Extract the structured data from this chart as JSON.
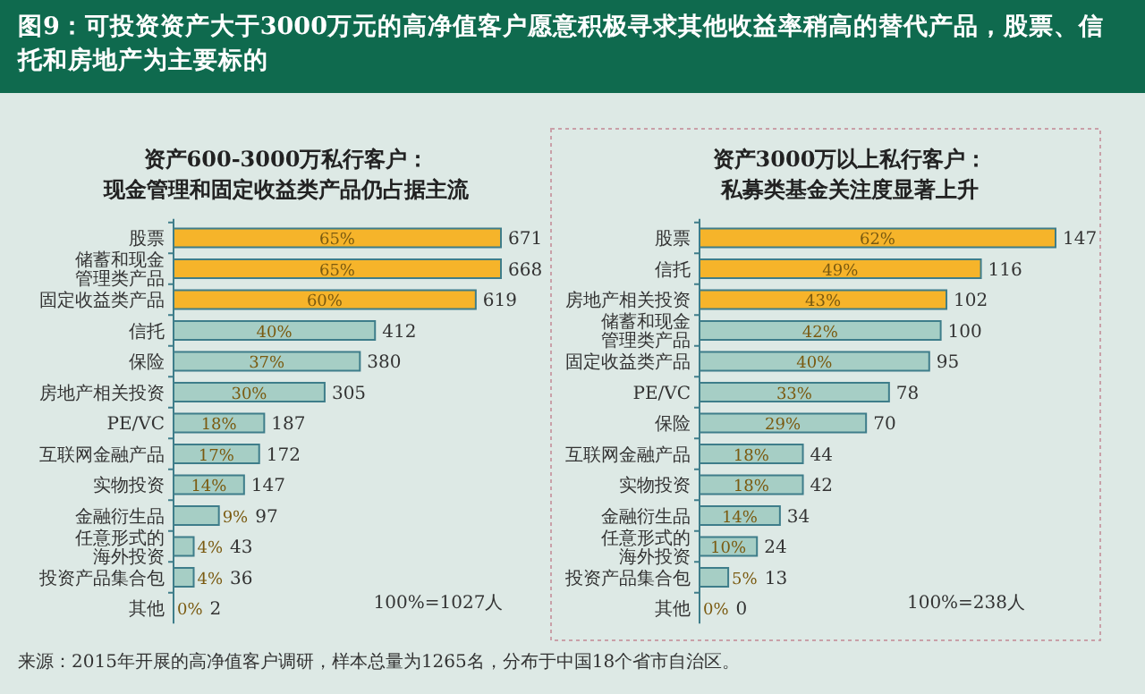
{
  "chart_data": [
    {
      "type": "bar",
      "orientation": "horizontal",
      "title": "资产600-3000万私行客户：",
      "subtitle": "现金管理和固定收益类产品仍占据主流",
      "categories": [
        "股票",
        "储蓄和现金管理类产品",
        "固定收益类产品",
        "信托",
        "保险",
        "房地产相关投资",
        "PE/VC",
        "互联网金融产品",
        "实物投资",
        "金融衍生品",
        "任意形式的海外投资",
        "投资产品集合包",
        "其他"
      ],
      "values": [
        65,
        65,
        60,
        40,
        37,
        30,
        18,
        17,
        14,
        9,
        4,
        4,
        0
      ],
      "value_labels": [
        "65%",
        "65%",
        "60%",
        "40%",
        "37%",
        "30%",
        "18%",
        "17%",
        "14%",
        "9%",
        "4%",
        "4%",
        "0%"
      ],
      "colors": [
        "#f6b42a",
        "#f6b42a",
        "#f6b42a",
        "#a6cec5",
        "#a6cec5",
        "#a6cec5",
        "#a6cec5",
        "#a6cec5",
        "#a6cec5",
        "#a6cec5",
        "#a6cec5",
        "#a6cec5",
        "#a6cec5"
      ],
      "annotations": [
        "图9：可投资资产大于3000万元的高净值客户愿意积极寻求其他收益率稍高的替代产品，股票、信托和房地产为主要标的",
        "100%=1027人",
        "来源：2015年开展的高净值客户调研，样本总量为1265名，分布于中国18个省市自治区。",
        {
          "text": "671",
          "x": 65,
          "y": "股票"
        },
        {
          "text": "668",
          "x": 65,
          "y": "储蓄和现金管理类产品"
        },
        {
          "text": "619",
          "x": 60,
          "y": "固定收益类产品"
        },
        {
          "text": "412",
          "x": 40,
          "y": "信托"
        },
        {
          "text": "380",
          "x": 37,
          "y": "保险"
        },
        {
          "text": "305",
          "x": 30,
          "y": "房地产相关投资"
        },
        {
          "text": "187",
          "x": 18,
          "y": "PE/VC"
        },
        {
          "text": "172",
          "x": 17,
          "y": "互联网金融产品"
        },
        {
          "text": "147",
          "x": 14,
          "y": "实物投资"
        },
        {
          "text": "97",
          "x": 9,
          "y": "金融衍生品"
        },
        {
          "text": "43",
          "x": 4,
          "y": "任意形式的海外投资"
        },
        {
          "text": "36",
          "x": 4,
          "y": "投资产品集合包"
        },
        {
          "text": "2",
          "x": 0,
          "y": "其他"
        }
      ]
    },
    {
      "type": "bar",
      "orientation": "horizontal",
      "title": "资产3000万以上私行客户：",
      "subtitle": "私募类基金关注度显著上升",
      "categories": [
        "股票",
        "信托",
        "房地产相关投资",
        "储蓄和现金管理类产品",
        "固定收益类产品",
        "PE/VC",
        "保险",
        "互联网金融产品",
        "实物投资",
        "金融衍生品",
        "任意形式的海外投资",
        "投资产品集合包",
        "其他"
      ],
      "values": [
        62,
        49,
        43,
        42,
        40,
        33,
        29,
        18,
        18,
        14,
        10,
        5,
        0
      ],
      "value_labels": [
        "62%",
        "49%",
        "43%",
        "42%",
        "40%",
        "33%",
        "29%",
        "18%",
        "18%",
        "14%",
        "10%",
        "5%",
        "0%"
      ],
      "colors": [
        "#f6b42a",
        "#f6b42a",
        "#f6b42a",
        "#a6cec5",
        "#a6cec5",
        "#a6cec5",
        "#a6cec5",
        "#a6cec5",
        "#a6cec5",
        "#a6cec5",
        "#a6cec5",
        "#a6cec5",
        "#a6cec5"
      ],
      "annotations": [
        "100%=238人",
        {
          "text": "147",
          "x": 62,
          "y": "股票"
        },
        {
          "text": "116",
          "x": 49,
          "y": "信托"
        },
        {
          "text": "102",
          "x": 43,
          "y": "房地产相关投资"
        },
        {
          "text": "100",
          "x": 42,
          "y": "储蓄和现金管理类产品"
        },
        {
          "text": "95",
          "x": 40,
          "y": "固定收益类产品"
        },
        {
          "text": "78",
          "x": 33,
          "y": "PE/VC"
        },
        {
          "text": "70",
          "x": 29,
          "y": "保险"
        },
        {
          "text": "44",
          "x": 18,
          "y": "互联网金融产品"
        },
        {
          "text": "42",
          "x": 18,
          "y": "实物投资"
        },
        {
          "text": "34",
          "x": 14,
          "y": "金融衍生品"
        },
        {
          "text": "24",
          "x": 10,
          "y": "任意形式的海外投资"
        },
        {
          "text": "13",
          "x": 5,
          "y": "投资产品集合包"
        },
        {
          "text": "0",
          "x": 0,
          "y": "其他"
        }
      ]
    }
  ]
}
